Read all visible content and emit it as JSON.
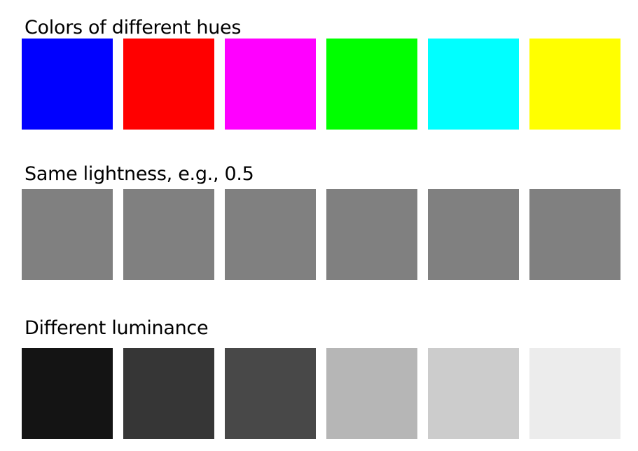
{
  "sections": [
    {
      "title": "Colors of different hues",
      "swatches": [
        {
          "name": "blue",
          "color": "#0000ff"
        },
        {
          "name": "red",
          "color": "#ff0000"
        },
        {
          "name": "magenta",
          "color": "#ff00ff"
        },
        {
          "name": "green",
          "color": "#00ff00"
        },
        {
          "name": "cyan",
          "color": "#00ffff"
        },
        {
          "name": "yellow",
          "color": "#ffff00"
        }
      ]
    },
    {
      "title": "Same lightness, e.g., 0.5",
      "swatches": [
        {
          "name": "gray",
          "color": "#808080"
        },
        {
          "name": "gray",
          "color": "#808080"
        },
        {
          "name": "gray",
          "color": "#808080"
        },
        {
          "name": "gray",
          "color": "#808080"
        },
        {
          "name": "gray",
          "color": "#808080"
        },
        {
          "name": "gray",
          "color": "#808080"
        }
      ]
    },
    {
      "title": "Different luminance",
      "swatches": [
        {
          "name": "near-black",
          "color": "#141414"
        },
        {
          "name": "dark-gray",
          "color": "#363636"
        },
        {
          "name": "medium-dark-gray",
          "color": "#484848"
        },
        {
          "name": "medium-light-gray",
          "color": "#b6b6b6"
        },
        {
          "name": "light-gray",
          "color": "#cccccc"
        },
        {
          "name": "near-white",
          "color": "#ececec"
        }
      ]
    }
  ]
}
